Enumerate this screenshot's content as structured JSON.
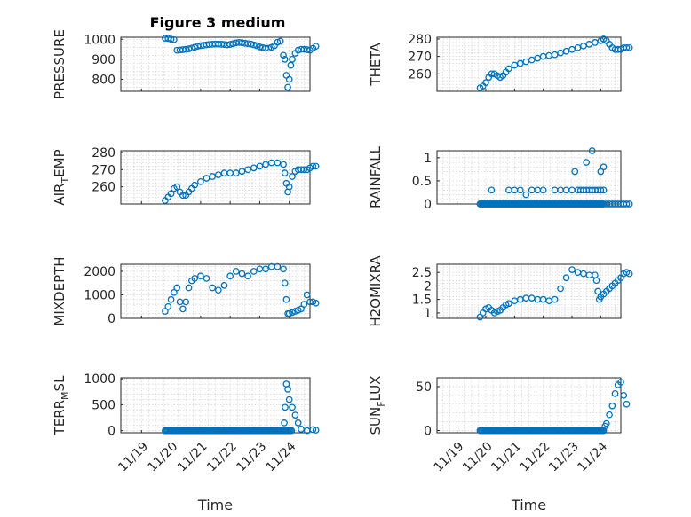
{
  "figure": {
    "title": "Figure 3 medium"
  },
  "chart_data": [
    {
      "type": "scatter",
      "id": "pressure",
      "ylabel": "PRESSURE",
      "ylim": [
        740,
        1010
      ],
      "yticks": [
        800,
        900,
        1000
      ],
      "x": [
        0.0,
        0.1,
        0.2,
        0.3,
        0.4,
        0.5,
        0.6,
        0.7,
        0.8,
        0.9,
        1.0,
        1.1,
        1.2,
        1.3,
        1.4,
        1.5,
        1.6,
        1.7,
        1.8,
        1.9,
        2.0,
        2.1,
        2.2,
        2.3,
        2.4,
        2.5,
        2.6,
        2.7,
        2.8,
        2.9,
        3.0,
        3.1,
        3.2,
        3.3,
        3.4,
        3.5,
        3.6,
        3.7,
        3.8,
        3.9,
        4.0,
        4.05,
        4.1,
        4.15,
        4.2,
        4.25,
        4.3,
        4.4,
        4.5,
        4.6,
        4.7,
        4.8,
        4.9,
        5.0,
        5.1
      ],
      "y": [
        1005,
        1004,
        1000,
        998,
        945,
        946,
        948,
        950,
        952,
        956,
        960,
        965,
        968,
        970,
        972,
        974,
        975,
        976,
        976,
        975,
        974,
        972,
        974,
        978,
        982,
        984,
        983,
        980,
        978,
        976,
        972,
        968,
        962,
        958,
        955,
        955,
        960,
        968,
        985,
        990,
        920,
        900,
        820,
        760,
        800,
        870,
        900,
        930,
        945,
        950,
        950,
        948,
        945,
        955,
        965
      ]
    },
    {
      "type": "scatter",
      "id": "theta",
      "ylabel": "THETA",
      "ylim": [
        250,
        281
      ],
      "yticks": [
        260,
        270,
        280
      ],
      "x": [
        0.0,
        0.1,
        0.2,
        0.3,
        0.4,
        0.5,
        0.6,
        0.7,
        0.8,
        0.9,
        1.0,
        1.2,
        1.4,
        1.6,
        1.8,
        2.0,
        2.2,
        2.4,
        2.6,
        2.8,
        3.0,
        3.2,
        3.4,
        3.6,
        3.8,
        4.0,
        4.2,
        4.3,
        4.4,
        4.5,
        4.6,
        4.7,
        4.8,
        4.9,
        5.0,
        5.1,
        5.2
      ],
      "y": [
        252,
        253,
        255,
        258,
        260,
        260,
        259,
        258,
        259,
        261,
        263,
        265,
        266,
        267,
        268,
        269,
        270,
        270.5,
        271,
        272,
        273,
        274,
        275,
        276,
        277,
        278,
        279,
        280,
        279,
        277,
        275,
        274,
        274,
        274,
        275,
        275,
        275
      ]
    },
    {
      "type": "scatter",
      "id": "air_temp",
      "ylabel": "AIR_TEMP",
      "ylim": [
        250,
        281
      ],
      "yticks": [
        260,
        270,
        280
      ],
      "x": [
        0.0,
        0.1,
        0.2,
        0.3,
        0.4,
        0.5,
        0.6,
        0.7,
        0.8,
        0.9,
        1.0,
        1.2,
        1.4,
        1.6,
        1.8,
        2.0,
        2.2,
        2.4,
        2.6,
        2.8,
        3.0,
        3.2,
        3.4,
        3.6,
        3.8,
        4.0,
        4.05,
        4.1,
        4.15,
        4.2,
        4.3,
        4.4,
        4.5,
        4.6,
        4.7,
        4.8,
        4.9,
        5.0,
        5.1
      ],
      "y": [
        252,
        254,
        256,
        259,
        260,
        257,
        255,
        255,
        257,
        259,
        261,
        263,
        265,
        266,
        267,
        268,
        268,
        268,
        269,
        270,
        271,
        272,
        273,
        274,
        274,
        273,
        268,
        262,
        257,
        260,
        266,
        269,
        270,
        270,
        270,
        270,
        271,
        272,
        272
      ]
    },
    {
      "type": "scatter",
      "id": "rainfall",
      "ylabel": "RAINFALL",
      "ylim": [
        0,
        1.15
      ],
      "yticks": [
        0,
        0.5,
        1
      ],
      "x": [
        0.0,
        0.1,
        0.2,
        0.3,
        0.4,
        0.5,
        0.6,
        0.7,
        0.8,
        0.9,
        1.0,
        1.1,
        1.2,
        1.3,
        1.4,
        1.5,
        1.6,
        1.7,
        1.8,
        1.9,
        2.0,
        2.1,
        2.2,
        2.3,
        2.4,
        2.5,
        2.6,
        2.7,
        2.8,
        2.9,
        3.0,
        3.1,
        3.2,
        3.3,
        3.4,
        3.5,
        3.6,
        3.7,
        3.8,
        3.9,
        4.0,
        4.1,
        4.2,
        4.3,
        4.4,
        4.5,
        4.6,
        4.7,
        4.8,
        4.9,
        5.0,
        5.1,
        5.2,
        0.4,
        1.0,
        1.2,
        1.4,
        1.6,
        1.8,
        2.0,
        2.2,
        2.6,
        2.8,
        3.0,
        3.2,
        3.4,
        3.5,
        3.6,
        3.7,
        3.8,
        3.9,
        4.0,
        4.1,
        4.2,
        4.3,
        3.3,
        3.7,
        4.2,
        4.3,
        3.9
      ],
      "y": [
        0,
        0,
        0,
        0,
        0,
        0,
        0,
        0,
        0,
        0,
        0,
        0,
        0,
        0,
        0,
        0,
        0,
        0,
        0,
        0,
        0,
        0,
        0,
        0,
        0,
        0,
        0,
        0,
        0,
        0,
        0,
        0,
        0,
        0,
        0,
        0,
        0,
        0,
        0,
        0,
        0,
        0,
        0,
        0,
        0,
        0,
        0,
        0,
        0,
        0,
        0,
        0,
        0,
        0.3,
        0.3,
        0.3,
        0.3,
        0.2,
        0.3,
        0.3,
        0.3,
        0.3,
        0.3,
        0.3,
        0.3,
        0.3,
        0.3,
        0.3,
        0.3,
        0.3,
        0.3,
        0.3,
        0.3,
        0.3,
        0.3,
        0.7,
        0.9,
        0.7,
        0.8,
        1.15
      ]
    },
    {
      "type": "scatter",
      "id": "mixdepth",
      "ylabel": "MIXDEPTH",
      "ylim": [
        0,
        2300
      ],
      "yticks": [
        0,
        1000,
        2000
      ],
      "x": [
        0.0,
        0.1,
        0.2,
        0.3,
        0.4,
        0.5,
        0.6,
        0.7,
        0.8,
        0.9,
        1.0,
        1.2,
        1.4,
        1.6,
        1.8,
        2.0,
        2.2,
        2.4,
        2.6,
        2.8,
        3.0,
        3.2,
        3.4,
        3.6,
        3.8,
        4.0,
        4.05,
        4.1,
        4.15,
        4.2,
        4.3,
        4.4,
        4.5,
        4.6,
        4.7,
        4.8,
        4.9,
        5.0,
        5.1
      ],
      "y": [
        300,
        500,
        800,
        1100,
        1300,
        700,
        400,
        700,
        1300,
        1600,
        1700,
        1800,
        1700,
        1300,
        1200,
        1400,
        1800,
        2000,
        1900,
        1800,
        2000,
        2100,
        2100,
        2200,
        2200,
        2100,
        1500,
        800,
        200,
        200,
        250,
        300,
        350,
        400,
        600,
        1000,
        700,
        700,
        650
      ]
    },
    {
      "type": "scatter",
      "id": "h2omixra",
      "ylabel": "H2OMIXRA",
      "ylim": [
        0.8,
        2.8
      ],
      "yticks": [
        1,
        1.5,
        2,
        2.5
      ],
      "x": [
        0.0,
        0.1,
        0.2,
        0.3,
        0.4,
        0.5,
        0.6,
        0.7,
        0.8,
        0.9,
        1.0,
        1.2,
        1.4,
        1.6,
        1.8,
        2.0,
        2.2,
        2.4,
        2.6,
        2.8,
        3.0,
        3.2,
        3.4,
        3.6,
        3.8,
        4.0,
        4.05,
        4.1,
        4.15,
        4.2,
        4.3,
        4.4,
        4.5,
        4.6,
        4.7,
        4.8,
        4.9,
        5.0,
        5.1,
        5.2
      ],
      "y": [
        0.85,
        1.0,
        1.15,
        1.2,
        1.1,
        1.0,
        1.05,
        1.1,
        1.2,
        1.3,
        1.35,
        1.45,
        1.5,
        1.55,
        1.55,
        1.5,
        1.5,
        1.45,
        1.5,
        1.9,
        2.3,
        2.6,
        2.5,
        2.45,
        2.4,
        2.4,
        2.2,
        1.8,
        1.5,
        1.6,
        1.7,
        1.8,
        1.9,
        2.0,
        2.1,
        2.2,
        2.3,
        2.45,
        2.5,
        2.45
      ]
    },
    {
      "type": "scatter",
      "id": "terr_msl",
      "ylabel": "TERR_MSL",
      "ylim": [
        -40,
        1020
      ],
      "yticks": [
        0,
        500,
        1000
      ],
      "xticklabels": [
        "11/19",
        "11/20",
        "11/21",
        "11/22",
        "11/23",
        "11/24"
      ],
      "xlabel": "Time",
      "x": [
        0.0,
        0.2,
        0.4,
        0.6,
        0.8,
        1.0,
        1.2,
        1.4,
        1.6,
        1.8,
        2.0,
        2.2,
        2.4,
        2.6,
        2.8,
        3.0,
        3.2,
        3.4,
        3.6,
        3.8,
        4.0,
        4.03,
        4.06,
        4.1,
        4.15,
        4.2,
        4.3,
        4.4,
        4.5,
        4.6,
        4.8,
        5.0,
        5.1
      ],
      "y": [
        0,
        0,
        0,
        0,
        0,
        0,
        0,
        0,
        0,
        0,
        0,
        0,
        0,
        0,
        0,
        0,
        0,
        0,
        0,
        0,
        0,
        150,
        450,
        900,
        800,
        600,
        450,
        300,
        150,
        30,
        0,
        20,
        10
      ]
    },
    {
      "type": "scatter",
      "id": "sun_flux",
      "ylabel": "SUN_FLUX",
      "ylim": [
        -2.5,
        60
      ],
      "yticks": [
        0,
        50
      ],
      "xticklabels": [
        "11/19",
        "11/20",
        "11/21",
        "11/22",
        "11/23",
        "11/24"
      ],
      "xlabel": "Time",
      "x": [
        0.0,
        0.2,
        0.4,
        0.6,
        0.8,
        1.0,
        1.2,
        1.4,
        1.6,
        1.8,
        2.0,
        2.2,
        2.4,
        2.6,
        2.8,
        3.0,
        3.2,
        3.4,
        3.5,
        3.6,
        3.8,
        4.0,
        4.1,
        4.2,
        4.3,
        4.35,
        4.4,
        4.5,
        4.6,
        4.7,
        4.8,
        4.9,
        5.0,
        5.1
      ],
      "y": [
        0,
        0,
        0,
        0,
        0,
        0,
        0,
        0,
        0,
        0,
        0,
        0,
        0,
        0,
        0,
        0,
        0,
        0,
        0,
        0,
        0,
        0,
        0,
        0,
        0,
        5,
        8,
        18,
        28,
        42,
        52,
        55,
        40,
        30
      ]
    }
  ]
}
